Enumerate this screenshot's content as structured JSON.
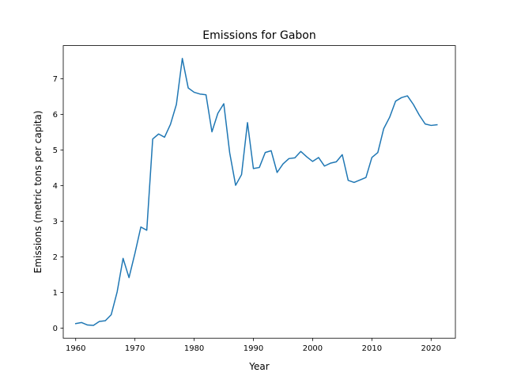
{
  "chart_data": {
    "type": "line",
    "title": "Emissions for Gabon",
    "xlabel": "Year",
    "ylabel": "Emissions (metric tons per capita)",
    "xlim": [
      1957.9,
      2024.1
    ],
    "ylim": [
      -0.28,
      7.93
    ],
    "xticks": [
      1960,
      1970,
      1980,
      1990,
      2000,
      2010,
      2020
    ],
    "yticks": [
      0,
      1,
      2,
      3,
      4,
      5,
      6,
      7
    ],
    "grid": false,
    "legend": "none",
    "series": [
      {
        "color": "#1f77b4",
        "x": [
          1960,
          1961,
          1962,
          1963,
          1964,
          1965,
          1966,
          1967,
          1968,
          1969,
          1970,
          1971,
          1972,
          1973,
          1974,
          1975,
          1976,
          1977,
          1978,
          1979,
          1980,
          1981,
          1982,
          1983,
          1984,
          1985,
          1986,
          1987,
          1988,
          1989,
          1990,
          1991,
          1992,
          1993,
          1994,
          1995,
          1996,
          1997,
          1998,
          1999,
          2000,
          2001,
          2002,
          2003,
          2004,
          2005,
          2006,
          2007,
          2008,
          2009,
          2010,
          2011,
          2012,
          2013,
          2014,
          2015,
          2016,
          2017,
          2018,
          2019,
          2020,
          2021
        ],
        "values": [
          0.13,
          0.16,
          0.09,
          0.08,
          0.19,
          0.21,
          0.38,
          1.02,
          1.96,
          1.42,
          2.1,
          2.84,
          2.75,
          5.31,
          5.45,
          5.36,
          5.72,
          6.28,
          7.57,
          6.74,
          6.62,
          6.57,
          6.55,
          5.51,
          6.03,
          6.3,
          4.92,
          4.01,
          4.31,
          5.77,
          4.48,
          4.51,
          4.93,
          4.98,
          4.37,
          4.61,
          4.76,
          4.78,
          4.96,
          4.81,
          4.68,
          4.79,
          4.55,
          4.63,
          4.67,
          4.87,
          4.15,
          4.09,
          4.16,
          4.23,
          4.79,
          4.93,
          5.6,
          5.92,
          6.37,
          6.47,
          6.52,
          6.28,
          5.98,
          5.73,
          5.69,
          5.71
        ]
      }
    ]
  }
}
